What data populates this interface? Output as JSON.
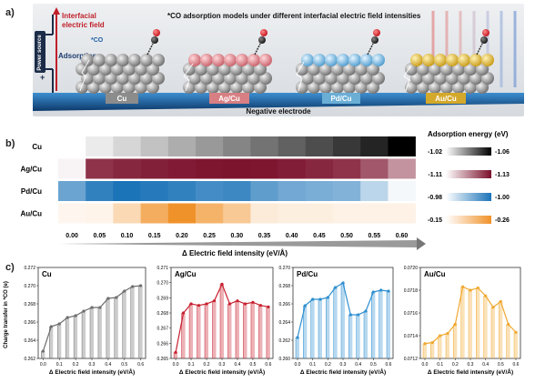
{
  "panel_a": {
    "label": "a)",
    "title": "*CO adsorption models under different  interfacial electric field intensities",
    "field_label_line1": "Interfacial",
    "field_label_line2": "electric field",
    "co_label": "*CO",
    "adsorption_label": "Adsorption",
    "power_label": "Power source",
    "plus_sign": "+",
    "electrode_label": "Negative electrode",
    "catalysts": [
      "Cu",
      "Ag/Cu",
      "Pd/Cu",
      "Au/Cu"
    ],
    "colors": {
      "Cu": "#8c8c8c",
      "Ag/Cu": "#d77f83",
      "Pd/Cu": "#6aaed6",
      "Au/Cu": "#d4a82a"
    }
  },
  "panel_b": {
    "label": "b)",
    "legend_title": "Adsorption energy (eV)",
    "xlabel": "Δ Electric field intensity (eV/Å)",
    "rows": [
      "Cu",
      "Ag/Cu",
      "Pd/Cu",
      "Au/Cu"
    ],
    "ticks": [
      "0.00",
      "0.05",
      "0.10",
      "0.15",
      "0.20",
      "0.25",
      "0.30",
      "0.35",
      "0.40",
      "0.45",
      "0.50",
      "0.55",
      "0.60"
    ],
    "legends": [
      {
        "min": "-1.02",
        "max": "-1.06",
        "c0": "#ffffff",
        "c1": "#000000"
      },
      {
        "min": "-1.11",
        "max": "-1.13",
        "c0": "#ffffff",
        "c1": "#7a0f2a"
      },
      {
        "min": "-0.98",
        "max": "-1.00",
        "c0": "#ffffff",
        "c1": "#1b73b8"
      },
      {
        "min": "-0.15",
        "max": "-0.26",
        "c0": "#ffffff",
        "c1": "#f0922a"
      }
    ],
    "intensity": [
      [
        0.0,
        0.08,
        0.16,
        0.24,
        0.32,
        0.4,
        0.48,
        0.55,
        0.62,
        0.7,
        0.78,
        0.86,
        1.0
      ],
      [
        0.05,
        0.85,
        0.9,
        0.93,
        0.95,
        0.97,
        0.98,
        0.97,
        0.94,
        0.9,
        0.85,
        0.7,
        0.45
      ],
      [
        0.65,
        0.9,
        1.0,
        0.95,
        0.9,
        0.82,
        0.85,
        0.7,
        0.62,
        0.58,
        0.55,
        0.3,
        0.05
      ],
      [
        0.08,
        0.1,
        0.35,
        0.75,
        1.0,
        0.7,
        0.5,
        0.18,
        0.15,
        0.15,
        0.12,
        0.12,
        0.12
      ]
    ]
  },
  "panel_c": {
    "label": "c)",
    "ylabel": "Charge transfer in *CO (e)",
    "xlabel": "Δ Electric field intensity (eV/Å)",
    "xticks": [
      "0.0",
      "0.1",
      "0.2",
      "0.3",
      "0.4",
      "0.5",
      "0.6"
    ]
  },
  "chart_data": [
    {
      "type": "heatmap",
      "title": "",
      "xlabel": "Δ Electric field intensity (eV/Å)",
      "ylabel": "",
      "x": [
        0.0,
        0.05,
        0.1,
        0.15,
        0.2,
        0.25,
        0.3,
        0.35,
        0.4,
        0.45,
        0.5,
        0.55,
        0.6
      ],
      "rows": [
        "Cu",
        "Ag/Cu",
        "Pd/Cu",
        "Au/Cu"
      ],
      "legend": "Adsorption energy (eV)"
    },
    {
      "type": "bar",
      "title": "Cu",
      "xlabel": "Δ Electric field intensity (eV/Å)",
      "ylabel": "Charge transfer in *CO (e)",
      "x": [
        0,
        0.05,
        0.1,
        0.15,
        0.2,
        0.25,
        0.3,
        0.35,
        0.4,
        0.45,
        0.5,
        0.55,
        0.6
      ],
      "values": [
        0.2628,
        0.2655,
        0.2658,
        0.2665,
        0.2667,
        0.2672,
        0.2676,
        0.2676,
        0.2686,
        0.2687,
        0.2694,
        0.2699,
        0.27
      ],
      "ylim": [
        0.262,
        0.272
      ],
      "yticks": [
        "0.262",
        "0.264",
        "0.266",
        "0.268",
        "0.270",
        "0.272"
      ],
      "color": "#6e6e6e"
    },
    {
      "type": "bar",
      "title": "Ag/Cu",
      "xlabel": "Δ Electric field intensity (eV/Å)",
      "ylabel": "",
      "x": [
        0,
        0.05,
        0.1,
        0.15,
        0.2,
        0.25,
        0.3,
        0.35,
        0.4,
        0.45,
        0.5,
        0.55,
        0.6
      ],
      "values": [
        0.2654,
        0.268,
        0.2686,
        0.2685,
        0.2686,
        0.2688,
        0.2699,
        0.2686,
        0.2688,
        0.2686,
        0.2687,
        0.2685,
        0.2684
      ],
      "ylim": [
        0.265,
        0.271
      ],
      "yticks": [
        "0.265",
        "0.266",
        "0.267",
        "0.268",
        "0.269",
        "0.270",
        "0.271"
      ],
      "color": "#c8202f"
    },
    {
      "type": "bar",
      "title": "Pd/Cu",
      "xlabel": "Δ Electric field intensity (eV/Å)",
      "ylabel": "",
      "x": [
        0,
        0.05,
        0.1,
        0.15,
        0.2,
        0.25,
        0.3,
        0.35,
        0.4,
        0.45,
        0.5,
        0.55,
        0.6
      ],
      "values": [
        0.2623,
        0.2658,
        0.2665,
        0.2665,
        0.2667,
        0.2678,
        0.2683,
        0.2648,
        0.2648,
        0.2652,
        0.2673,
        0.2675,
        0.2674
      ],
      "ylim": [
        0.26,
        0.27
      ],
      "yticks": [
        "0.260",
        "0.262",
        "0.264",
        "0.266",
        "0.268",
        "0.270"
      ],
      "color": "#2f8fd0"
    },
    {
      "type": "bar",
      "title": "Au/Cu",
      "xlabel": "Δ Electric field intensity (eV/Å)",
      "ylabel": "",
      "x": [
        0,
        0.05,
        0.1,
        0.15,
        0.2,
        0.25,
        0.3,
        0.35,
        0.4,
        0.45,
        0.5,
        0.55,
        0.6
      ],
      "values": [
        0.07133,
        0.07134,
        0.0714,
        0.07142,
        0.0715,
        0.07183,
        0.0718,
        0.07182,
        0.07175,
        0.07165,
        0.0717,
        0.0715,
        0.07143
      ],
      "ylim": [
        0.0712,
        0.072
      ],
      "yticks": [
        "0.0712",
        "0.0714",
        "0.0716",
        "0.0718",
        "0.0720"
      ],
      "color": "#f0a830"
    }
  ]
}
